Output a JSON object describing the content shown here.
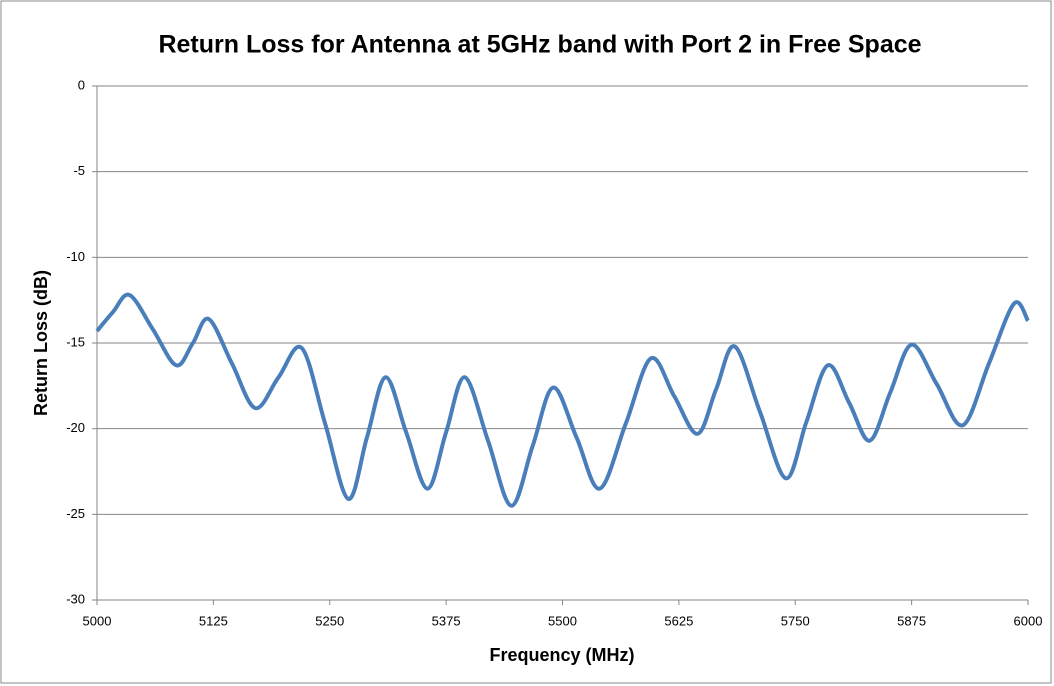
{
  "chart_data": {
    "type": "line",
    "title": "Return Loss for Antenna at 5GHz band with Port 2 in Free Space",
    "x_label": "Frequency  (MHz)",
    "y_label": "Return Loss (dB)",
    "x": [
      5000,
      5017,
      5035,
      5060,
      5085,
      5103,
      5120,
      5145,
      5170,
      5195,
      5220,
      5245,
      5270,
      5290,
      5310,
      5332,
      5355,
      5375,
      5395,
      5420,
      5445,
      5468,
      5490,
      5515,
      5540,
      5568,
      5595,
      5620,
      5645,
      5665,
      5685,
      5712,
      5740,
      5762,
      5785,
      5808,
      5830,
      5852,
      5875,
      5902,
      5930,
      5958,
      5985,
      6000
    ],
    "series": [
      {
        "name": "Return Loss",
        "color": "#4a7ebb",
        "values": [
          -14.3,
          -13.2,
          -12.2,
          -14.2,
          -16.3,
          -15.0,
          -13.6,
          -16.2,
          -18.8,
          -17.0,
          -15.3,
          -19.7,
          -24.1,
          -20.5,
          -17.0,
          -20.2,
          -23.5,
          -20.2,
          -17.0,
          -20.7,
          -24.5,
          -21.0,
          -17.6,
          -20.5,
          -23.5,
          -19.7,
          -15.9,
          -18.1,
          -20.3,
          -17.7,
          -15.2,
          -19.0,
          -22.9,
          -19.6,
          -16.3,
          -18.5,
          -20.7,
          -17.9,
          -15.1,
          -17.4,
          -19.8,
          -16.2,
          -12.7,
          -13.7
        ]
      }
    ],
    "xlim": [
      5000,
      6000
    ],
    "xticks": [
      5000,
      5125,
      5250,
      5375,
      5500,
      5625,
      5750,
      5875,
      6000
    ],
    "ylim": [
      -30,
      0
    ],
    "yticks": [
      -30,
      -25,
      -20,
      -15,
      -10,
      -5,
      0
    ],
    "grid": true
  }
}
